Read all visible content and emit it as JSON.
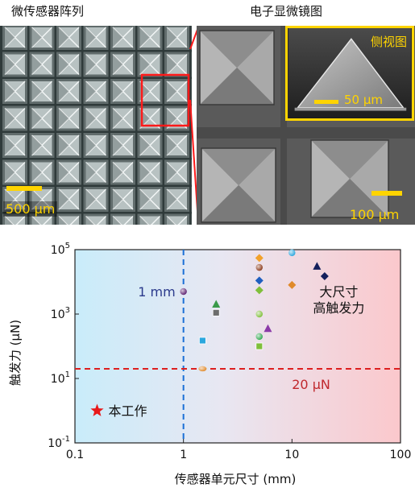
{
  "panels": {
    "array_title": "微传感器阵列",
    "sem_title": "电子显微镜图",
    "array_scale": "500 μm",
    "sem_scale": "100 μm",
    "inset_title": "侧视图",
    "inset_scale": "50 μm",
    "colors": {
      "scalebar": "#ffd400",
      "highlight_box": "#ff1a1a"
    }
  },
  "chart_data": {
    "type": "scatter",
    "x_scale": "log",
    "y_scale": "log",
    "xlim": [
      0.1,
      100
    ],
    "ylim": [
      0.1,
      100000
    ],
    "xlabel": "传感器单元尺寸 (mm)",
    "ylabel": "触发力 (μN)",
    "x_ticks": [
      {
        "value": 0.1,
        "label": "0.1"
      },
      {
        "value": 1,
        "label": "1"
      },
      {
        "value": 10,
        "label": "10"
      },
      {
        "value": 100,
        "label": "100"
      }
    ],
    "y_ticks": [
      {
        "value": 0.1,
        "base": "10",
        "exp": "-1"
      },
      {
        "value": 10,
        "base": "10",
        "exp": "1"
      },
      {
        "value": 1000,
        "base": "10",
        "exp": "3"
      },
      {
        "value": 100000,
        "base": "10",
        "exp": "5"
      }
    ],
    "reference_lines": [
      {
        "axis": "x",
        "value": 1,
        "label": "1 mm",
        "color": "#1a6fd6"
      },
      {
        "axis": "y",
        "value": 20,
        "label": "20 μN",
        "color": "#dd1f1f"
      }
    ],
    "annotations": [
      {
        "text": "大尺寸",
        "x": 27,
        "y": 5000
      },
      {
        "text": "高触发力",
        "x": 27,
        "y": 1600
      }
    ],
    "legend": [
      {
        "marker": "star",
        "label": "本工作",
        "color": "#e8191a"
      }
    ],
    "points": [
      {
        "x": 1.0,
        "y": 5000,
        "marker": "circle",
        "color": "#5b1c6e"
      },
      {
        "x": 1.5,
        "y": 20,
        "marker": "ellipse",
        "color": "#e08a2a"
      },
      {
        "x": 1.5,
        "y": 150,
        "marker": "square",
        "color": "#2aa7de"
      },
      {
        "x": 2.0,
        "y": 2000,
        "marker": "triangle",
        "color": "#3a9a4a"
      },
      {
        "x": 2.0,
        "y": 1100,
        "marker": "square",
        "color": "#6d6d6d"
      },
      {
        "x": 5.0,
        "y": 55000,
        "marker": "diamond",
        "color": "#f2a12a"
      },
      {
        "x": 5.0,
        "y": 28000,
        "marker": "circle",
        "color": "#8b3a1a"
      },
      {
        "x": 5.0,
        "y": 11000,
        "marker": "diamond",
        "color": "#1f5fbf"
      },
      {
        "x": 5.0,
        "y": 5500,
        "marker": "diamond",
        "color": "#7fbf3a"
      },
      {
        "x": 5.0,
        "y": 1000,
        "marker": "circle",
        "color": "#7fbf3a"
      },
      {
        "x": 5.0,
        "y": 200,
        "marker": "circle",
        "color": "#2fa84f"
      },
      {
        "x": 5.0,
        "y": 100,
        "marker": "square",
        "color": "#7fbf3a"
      },
      {
        "x": 6.0,
        "y": 350,
        "marker": "triangle",
        "color": "#8b3aa8"
      },
      {
        "x": 10.0,
        "y": 80000,
        "marker": "circle",
        "color": "#2aa7de"
      },
      {
        "x": 10.0,
        "y": 8000,
        "marker": "diamond",
        "color": "#e08a2a"
      },
      {
        "x": 17.0,
        "y": 30000,
        "marker": "triangle",
        "color": "#14205c"
      },
      {
        "x": 20.0,
        "y": 15000,
        "marker": "diamond",
        "color": "#14205c"
      },
      {
        "x": 0.16,
        "y": 1.0,
        "marker": "star",
        "color": "#e8191a"
      }
    ]
  }
}
